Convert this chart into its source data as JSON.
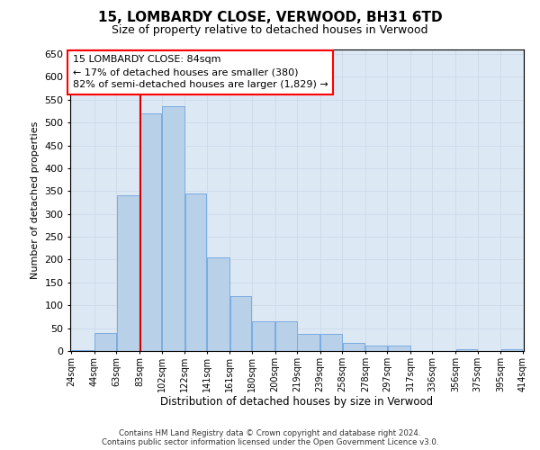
{
  "title_line1": "15, LOMBARDY CLOSE, VERWOOD, BH31 6TD",
  "title_line2": "Size of property relative to detached houses in Verwood",
  "xlabel": "Distribution of detached houses by size in Verwood",
  "ylabel": "Number of detached properties",
  "annotation_line1": "15 LOMBARDY CLOSE: 84sqm",
  "annotation_line2": "← 17% of detached houses are smaller (380)",
  "annotation_line3": "82% of semi-detached houses are larger (1,829) →",
  "vline_x": 84,
  "vline_color": "#cc0000",
  "bin_edges": [
    24,
    44,
    63,
    83,
    102,
    122,
    141,
    161,
    180,
    200,
    219,
    239,
    258,
    278,
    297,
    317,
    336,
    356,
    375,
    395,
    414
  ],
  "bin_labels": [
    "24sqm",
    "44sqm",
    "63sqm",
    "83sqm",
    "102sqm",
    "122sqm",
    "141sqm",
    "161sqm",
    "180sqm",
    "200sqm",
    "219sqm",
    "239sqm",
    "258sqm",
    "278sqm",
    "297sqm",
    "317sqm",
    "336sqm",
    "356sqm",
    "375sqm",
    "395sqm",
    "414sqm"
  ],
  "bar_heights": [
    2,
    40,
    340,
    520,
    535,
    345,
    205,
    120,
    65,
    65,
    37,
    37,
    17,
    12,
    11,
    0,
    0,
    3,
    0,
    3
  ],
  "bar_color": "#b8d0e8",
  "bar_edge_color": "#7aabe0",
  "ylim": [
    0,
    660
  ],
  "yticks": [
    0,
    50,
    100,
    150,
    200,
    250,
    300,
    350,
    400,
    450,
    500,
    550,
    600,
    650
  ],
  "grid_color": "#c8d8e8",
  "plot_bg_color": "#dce8f4",
  "footnote_line1": "Contains HM Land Registry data © Crown copyright and database right 2024.",
  "footnote_line2": "Contains public sector information licensed under the Open Government Licence v3.0."
}
